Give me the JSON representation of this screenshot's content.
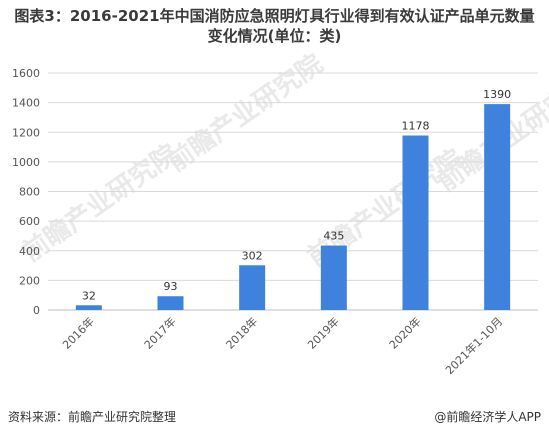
{
  "title": "图表3：2016-2021年中国消防应急照明灯具行业得到有效认证产品单元数量变化情况(单位：类)",
  "watermark": "前瞻产业研究院",
  "source": "资料来源：前瞻产业研究院整理",
  "credit": "@前瞻经济学人APP",
  "colors": {
    "bar": "#3f82de",
    "grid": "#d9d9d9",
    "text": "#555555"
  },
  "chart_data": {
    "type": "bar",
    "categories": [
      "2016年",
      "2017年",
      "2018年",
      "2019年",
      "2020年",
      "2021年1-10月"
    ],
    "values": [
      32,
      93,
      302,
      435,
      1178,
      1390
    ],
    "ylim": [
      0,
      1600
    ],
    "yticks": [
      0,
      200,
      400,
      600,
      800,
      1000,
      1200,
      1400,
      1600
    ],
    "grid": true,
    "legend": "none"
  }
}
